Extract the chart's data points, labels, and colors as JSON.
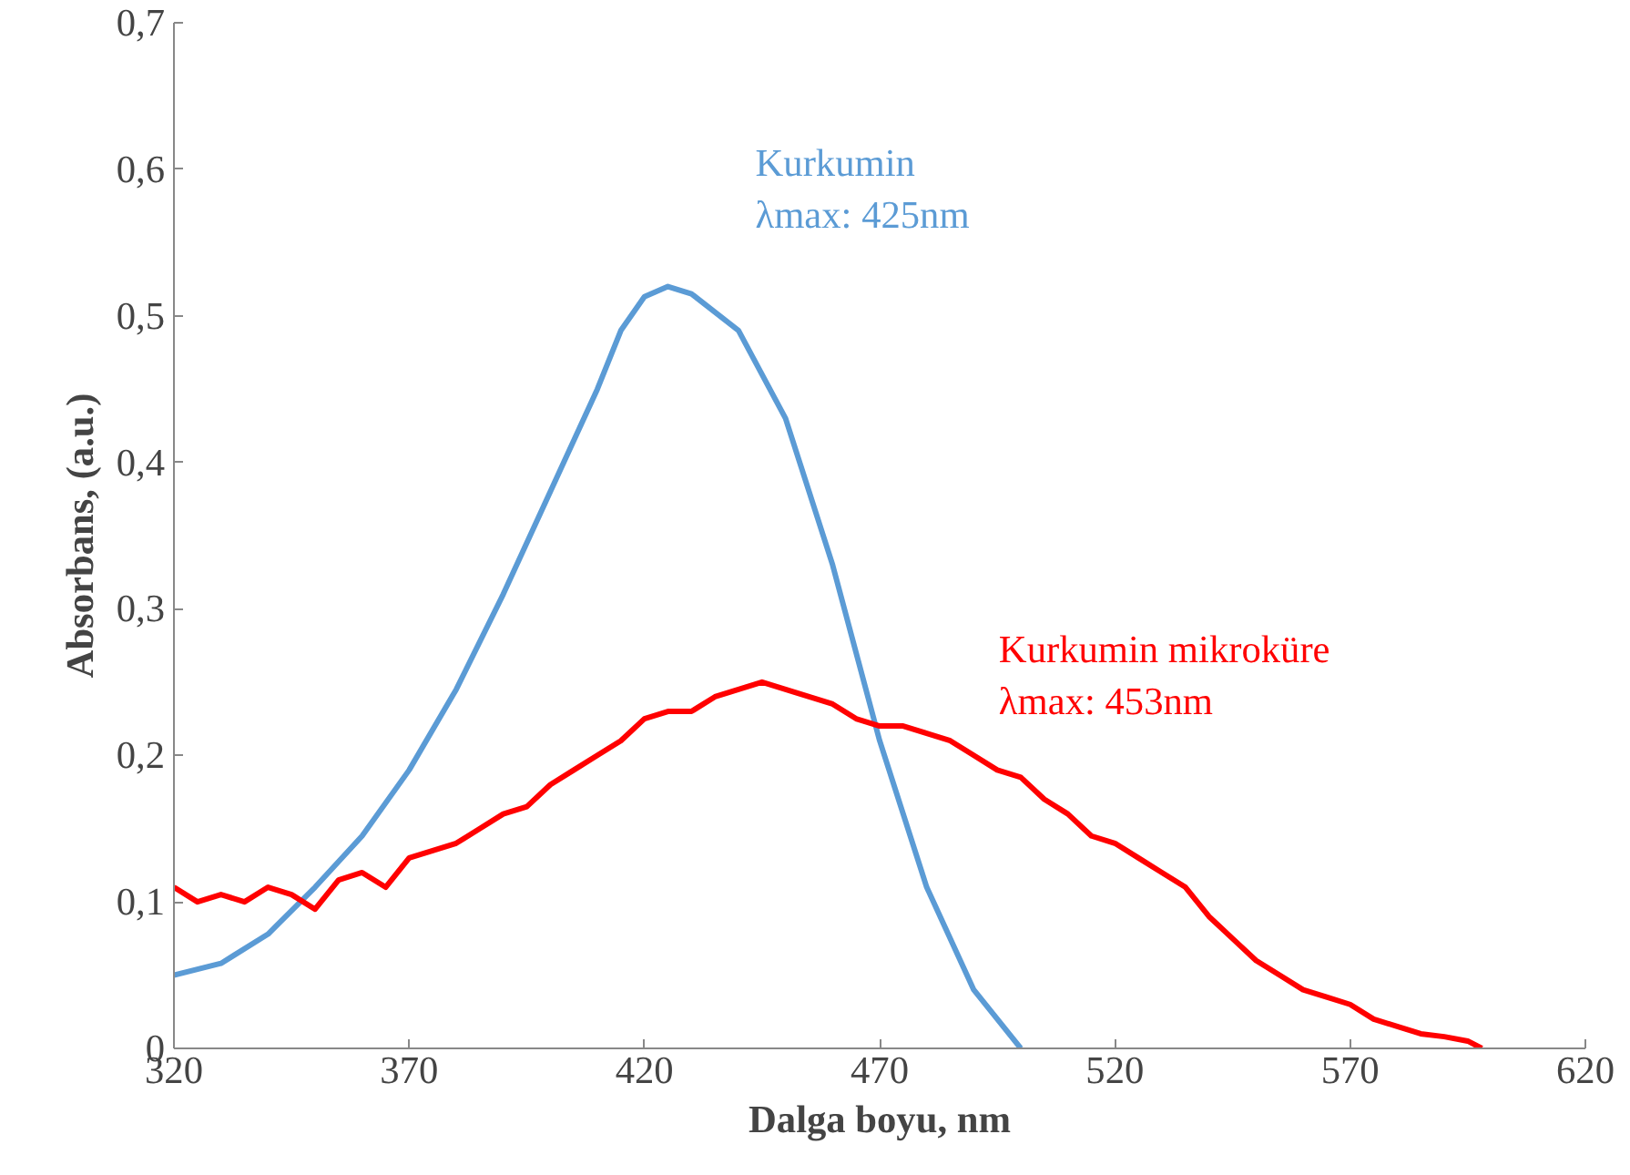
{
  "chart_data": {
    "type": "line",
    "xlabel": "Dalga boyu, nm",
    "ylabel": "Absorbans, (a.u.)",
    "xlim": [
      320,
      620
    ],
    "xticks": [
      320,
      370,
      420,
      470,
      520,
      570,
      620
    ],
    "ylim": [
      0,
      0.7
    ],
    "yticks": [
      0,
      {
        "value": 0.1,
        "label": "0,1"
      },
      {
        "value": 0.2,
        "label": "0,2"
      },
      {
        "value": 0.3,
        "label": "0,3"
      },
      {
        "value": 0.4,
        "label": "0,4"
      },
      {
        "value": 0.5,
        "label": "0,5"
      },
      {
        "value": 0.6,
        "label": "0,6"
      },
      {
        "value": 0.7,
        "label": "0,7"
      }
    ],
    "grid": false,
    "series": [
      {
        "color": "#5b9bd5",
        "x": [
          320,
          330,
          340,
          350,
          360,
          370,
          380,
          390,
          400,
          410,
          415,
          420,
          425,
          430,
          440,
          450,
          460,
          470,
          480,
          490,
          500
        ],
        "values": [
          0.05,
          0.058,
          0.078,
          0.11,
          0.145,
          0.19,
          0.245,
          0.31,
          0.38,
          0.45,
          0.49,
          0.513,
          0.52,
          0.515,
          0.49,
          0.43,
          0.33,
          0.21,
          0.11,
          0.04,
          0.0
        ]
      },
      {
        "color": "#ff0000",
        "x": [
          320,
          325,
          330,
          335,
          340,
          345,
          350,
          355,
          360,
          365,
          370,
          375,
          380,
          385,
          390,
          395,
          400,
          405,
          410,
          415,
          420,
          425,
          430,
          435,
          440,
          445,
          450,
          455,
          460,
          465,
          470,
          475,
          480,
          485,
          490,
          495,
          500,
          505,
          510,
          515,
          520,
          525,
          530,
          535,
          540,
          545,
          550,
          555,
          560,
          565,
          570,
          575,
          580,
          585,
          590,
          595,
          598
        ],
        "values": [
          0.11,
          0.1,
          0.105,
          0.1,
          0.11,
          0.105,
          0.095,
          0.115,
          0.12,
          0.11,
          0.13,
          0.135,
          0.14,
          0.15,
          0.16,
          0.165,
          0.18,
          0.19,
          0.2,
          0.21,
          0.225,
          0.23,
          0.23,
          0.24,
          0.245,
          0.25,
          0.245,
          0.24,
          0.235,
          0.225,
          0.22,
          0.22,
          0.215,
          0.21,
          0.2,
          0.19,
          0.185,
          0.17,
          0.16,
          0.145,
          0.14,
          0.13,
          0.12,
          0.11,
          0.09,
          0.075,
          0.06,
          0.05,
          0.04,
          0.035,
          0.03,
          0.02,
          0.015,
          0.01,
          0.008,
          0.005,
          0.0
        ]
      }
    ],
    "annotations": [
      "Kurkumin\nλmax: 425nm",
      "Kurkumin mikroküre\nλmax: 453nm"
    ]
  }
}
